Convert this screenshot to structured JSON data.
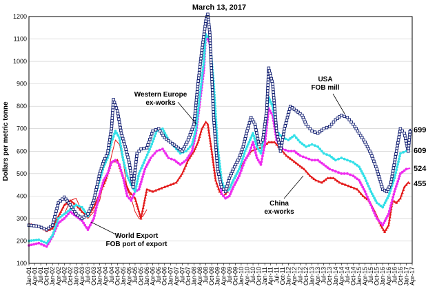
{
  "chart_data": {
    "type": "line",
    "title": "March 13, 2017",
    "ylabel": "Dollars per metric tonne",
    "xlabel": "",
    "ylim": [
      100,
      1200
    ],
    "yticks": [
      100,
      200,
      300,
      400,
      500,
      600,
      700,
      800,
      900,
      1000,
      1100,
      1200
    ],
    "grid": true,
    "legend": "none",
    "xrange": [
      "2001-01",
      "2017-04"
    ],
    "xtick_labels": [
      "Jan-01",
      "Apr-01",
      "Jul-01",
      "Oct-01",
      "Jan-02",
      "Apr-02",
      "Jul-02",
      "Oct-02",
      "Jan-03",
      "Apr-03",
      "Jul-03",
      "Oct-03",
      "Jan-04",
      "Apr-04",
      "Jul-04",
      "Oct-04",
      "Jan-05",
      "Apr-05",
      "Jul-05",
      "Oct-05",
      "Jan-06",
      "Apr-06",
      "Jul-06",
      "Oct-06",
      "Jan-07",
      "Apr-07",
      "Jul-07",
      "Oct-07",
      "Jan-08",
      "Apr-08",
      "Jul-08",
      "Oct-08",
      "Jan-09",
      "Apr-09",
      "Jul-09",
      "Oct-09",
      "Jan-10",
      "Apr-10",
      "Jul-10",
      "Oct-10",
      "Jan-11",
      "Apr-11",
      "Jul-11",
      "Oct-11",
      "Jan-12",
      "Apr-12",
      "Jul-12",
      "Oct-12",
      "Jan-13",
      "Apr-13",
      "Jul-13",
      "Oct-13",
      "Jan-14",
      "Apr-14",
      "Jul-14",
      "Oct-14",
      "Jan-15",
      "Apr-15",
      "Jul-15",
      "Oct-15",
      "Jan-16",
      "Apr-16",
      "Jul-16",
      "Oct-16",
      "Jan-17",
      "Apr-17"
    ],
    "annotations": [
      {
        "text": "Western Europe",
        "line2": "ex-works"
      },
      {
        "text": "USA",
        "line2": "FOB mill"
      },
      {
        "text": "China",
        "line2": "ex-works"
      },
      {
        "text": "World Export",
        "line2": "FOB port of export"
      }
    ],
    "end_labels": [
      "699",
      "609",
      "524",
      "455"
    ],
    "series": [
      {
        "color": "#0d1a6e",
        "marker": "square",
        "x": [
          "2001-01",
          "2001-06",
          "2001-10",
          "2002-01",
          "2002-04",
          "2002-07",
          "2002-10",
          "2003-01",
          "2003-04",
          "2003-07",
          "2003-10",
          "2004-01",
          "2004-03",
          "2004-05",
          "2004-07",
          "2004-08",
          "2004-10",
          "2004-12",
          "2005-02",
          "2005-04",
          "2005-06",
          "2005-08",
          "2005-10",
          "2006-01",
          "2006-04",
          "2006-07",
          "2006-10",
          "2007-01",
          "2007-04",
          "2007-07",
          "2007-10",
          "2008-01",
          "2008-03",
          "2008-05",
          "2008-07",
          "2008-08",
          "2008-09",
          "2008-11",
          "2009-01",
          "2009-03",
          "2009-05",
          "2009-07",
          "2009-09",
          "2009-12",
          "2010-02",
          "2010-04",
          "2010-06",
          "2010-08",
          "2010-10",
          "2010-12",
          "2011-02",
          "2011-03",
          "2011-05",
          "2011-07",
          "2011-09",
          "2011-11",
          "2012-02",
          "2012-05",
          "2012-08",
          "2012-10",
          "2013-01",
          "2013-04",
          "2013-07",
          "2013-10",
          "2014-01",
          "2014-04",
          "2014-07",
          "2014-10",
          "2015-01",
          "2015-04",
          "2015-07",
          "2015-10",
          "2016-01",
          "2016-03",
          "2016-05",
          "2016-08",
          "2016-10",
          "2016-12",
          "2017-02",
          "2017-03"
        ],
        "values": [
          270,
          265,
          250,
          270,
          370,
          395,
          360,
          320,
          300,
          320,
          380,
          500,
          555,
          590,
          700,
          830,
          780,
          680,
          620,
          550,
          440,
          590,
          610,
          615,
          690,
          700,
          660,
          640,
          620,
          600,
          650,
          720,
          900,
          1050,
          1180,
          1210,
          1130,
          750,
          520,
          440,
          420,
          480,
          520,
          570,
          620,
          690,
          750,
          720,
          630,
          650,
          780,
          970,
          900,
          690,
          600,
          700,
          800,
          780,
          760,
          720,
          690,
          680,
          700,
          710,
          740,
          760,
          750,
          720,
          680,
          640,
          590,
          520,
          430,
          420,
          450,
          600,
          700,
          680,
          600,
          699
        ]
      },
      {
        "color": "#33e0e8",
        "marker": "circle",
        "x": [
          "2001-01",
          "2001-06",
          "2001-10",
          "2002-01",
          "2002-04",
          "2002-07",
          "2002-10",
          "2003-01",
          "2003-04",
          "2003-07",
          "2003-10",
          "2004-01",
          "2004-03",
          "2004-05",
          "2004-07",
          "2004-09",
          "2004-11",
          "2005-01",
          "2005-03",
          "2005-05",
          "2005-07",
          "2005-09",
          "2005-12",
          "2006-03",
          "2006-06",
          "2006-09",
          "2006-12",
          "2007-03",
          "2007-06",
          "2007-09",
          "2007-12",
          "2008-02",
          "2008-04",
          "2008-06",
          "2008-07",
          "2008-09",
          "2008-11",
          "2009-01",
          "2009-03",
          "2009-05",
          "2009-07",
          "2009-09",
          "2009-12",
          "2010-03",
          "2010-05",
          "2010-07",
          "2010-09",
          "2010-11",
          "2011-01",
          "2011-03",
          "2011-05",
          "2011-07",
          "2011-10",
          "2012-01",
          "2012-04",
          "2012-07",
          "2012-10",
          "2013-01",
          "2013-04",
          "2013-07",
          "2013-10",
          "2014-01",
          "2014-04",
          "2014-07",
          "2014-10",
          "2015-01",
          "2015-04",
          "2015-07",
          "2015-10",
          "2016-01",
          "2016-04",
          "2016-07",
          "2016-10",
          "2017-01",
          "2017-03"
        ],
        "values": [
          200,
          205,
          190,
          225,
          300,
          320,
          340,
          360,
          350,
          310,
          380,
          470,
          530,
          570,
          640,
          690,
          660,
          560,
          490,
          450,
          420,
          500,
          560,
          620,
          690,
          700,
          650,
          620,
          590,
          600,
          630,
          700,
          850,
          1000,
          1120,
          1100,
          900,
          620,
          470,
          420,
          430,
          470,
          520,
          600,
          640,
          680,
          620,
          590,
          690,
          840,
          800,
          690,
          660,
          650,
          670,
          640,
          620,
          630,
          620,
          590,
          580,
          560,
          570,
          560,
          550,
          530,
          480,
          420,
          370,
          350,
          400,
          480,
          590,
          600,
          609
        ]
      },
      {
        "color": "#ee2bee",
        "marker": "circle",
        "x": [
          "2001-01",
          "2001-06",
          "2001-10",
          "2002-01",
          "2002-04",
          "2002-07",
          "2002-10",
          "2003-01",
          "2003-04",
          "2003-07",
          "2003-10",
          "2004-01",
          "2004-03",
          "2004-05",
          "2004-07",
          "2004-09",
          "2004-11",
          "2005-01",
          "2005-03",
          "2005-05",
          "2005-07",
          "2005-09",
          "2005-12",
          "2006-03",
          "2006-06",
          "2006-09",
          "2006-12",
          "2007-03",
          "2007-06",
          "2007-09",
          "2007-12",
          "2008-02",
          "2008-04",
          "2008-06",
          "2008-07",
          "2008-09",
          "2008-11",
          "2009-01",
          "2009-03",
          "2009-05",
          "2009-07",
          "2009-09",
          "2009-12",
          "2010-03",
          "2010-05",
          "2010-07",
          "2010-09",
          "2010-11",
          "2011-01",
          "2011-03",
          "2011-05",
          "2011-07",
          "2011-10",
          "2012-01",
          "2012-04",
          "2012-07",
          "2012-10",
          "2013-01",
          "2013-04",
          "2013-07",
          "2013-10",
          "2014-01",
          "2014-04",
          "2014-07",
          "2014-10",
          "2015-01",
          "2015-04",
          "2015-07",
          "2015-10",
          "2016-01",
          "2016-04",
          "2016-07",
          "2016-10",
          "2017-01",
          "2017-03"
        ],
        "values": [
          180,
          190,
          175,
          220,
          280,
          300,
          330,
          310,
          290,
          250,
          300,
          410,
          470,
          500,
          550,
          560,
          540,
          480,
          400,
          380,
          420,
          430,
          520,
          570,
          600,
          610,
          570,
          560,
          540,
          560,
          600,
          680,
          820,
          960,
          1120,
          1080,
          850,
          560,
          410,
          390,
          400,
          440,
          490,
          560,
          590,
          640,
          570,
          540,
          630,
          790,
          760,
          650,
          610,
          600,
          600,
          580,
          570,
          560,
          560,
          540,
          520,
          510,
          500,
          500,
          490,
          470,
          420,
          360,
          300,
          270,
          320,
          420,
          500,
          520,
          524
        ]
      },
      {
        "color": "#e31a1a",
        "marker": "triangle",
        "x": [
          "2001-01",
          "2001-06",
          "2001-10",
          "2002-01",
          "2002-04",
          "2002-07",
          "2002-10",
          "2003-01",
          "2003-04",
          "2003-07",
          "2003-10",
          "2004-01",
          "2004-04",
          "2004-07",
          "2004-10",
          "2005-01",
          "2005-04",
          "2005-07",
          "2005-10",
          "2006-01",
          "2006-04",
          "2006-07",
          "2006-10",
          "2007-01",
          "2007-04",
          "2007-07",
          "2007-10",
          "2008-01",
          "2008-03",
          "2008-05",
          "2008-07",
          "2008-08",
          "2008-10",
          "2008-12",
          "2009-02",
          "2009-04",
          "2009-06",
          "2009-09",
          "2009-12",
          "2010-03",
          "2010-06",
          "2010-09",
          "2010-12",
          "2011-03",
          "2011-06",
          "2011-09",
          "2011-12",
          "2012-03",
          "2012-06",
          "2012-09",
          "2012-12",
          "2013-03",
          "2013-06",
          "2013-09",
          "2013-12",
          "2014-03",
          "2014-06",
          "2014-09",
          "2014-12",
          "2015-03",
          "2015-06",
          "2015-09",
          "2015-12",
          "2016-02",
          "2016-04",
          "2016-06",
          "2016-08",
          "2016-10",
          "2016-12",
          "2017-02",
          "2017-03"
        ],
        "values": [
          275,
          265,
          245,
          255,
          310,
          360,
          380,
          360,
          330,
          310,
          350,
          410,
          470,
          550,
          560,
          480,
          420,
          390,
          300,
          430,
          420,
          430,
          440,
          450,
          460,
          500,
          560,
          600,
          640,
          700,
          730,
          720,
          600,
          470,
          420,
          400,
          420,
          470,
          520,
          560,
          600,
          610,
          620,
          640,
          640,
          610,
          580,
          560,
          540,
          520,
          490,
          470,
          460,
          480,
          480,
          460,
          450,
          440,
          430,
          400,
          380,
          330,
          270,
          240,
          270,
          380,
          370,
          390,
          440,
          460,
          455
        ]
      },
      {
        "color": "#e31a1a",
        "marker": "none",
        "x": [
          "2001-01",
          "2001-06",
          "2001-10",
          "2002-01",
          "2002-04",
          "2002-07",
          "2002-10",
          "2003-01",
          "2003-04",
          "2003-07",
          "2003-10",
          "2004-01",
          "2004-03",
          "2004-05",
          "2004-07",
          "2004-09",
          "2004-11",
          "2005-01",
          "2005-03",
          "2005-05",
          "2005-07",
          "2005-09",
          "2005-11",
          "2006-01"
        ],
        "values": [
          270,
          265,
          250,
          260,
          300,
          320,
          380,
          390,
          330,
          300,
          330,
          380,
          460,
          500,
          580,
          650,
          630,
          550,
          430,
          390,
          330,
          300,
          310,
          340
        ]
      }
    ]
  }
}
